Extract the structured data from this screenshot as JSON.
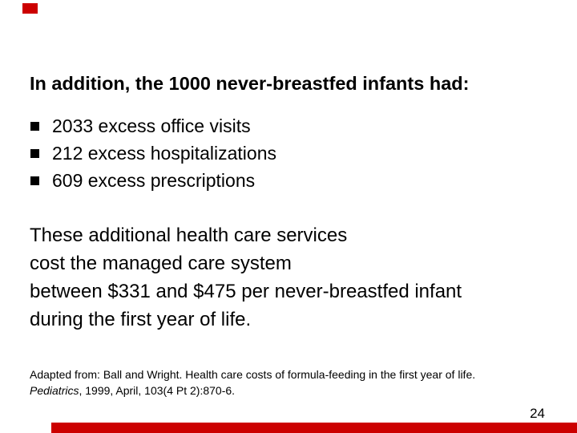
{
  "slide": {
    "accent_color": "#cc0000",
    "bullet_color": "#000000",
    "title": "In addition, the 1000 never-breastfed infants had:",
    "bullets": [
      "2033 excess office visits",
      "212 excess hospitalizations",
      "609 excess prescriptions"
    ],
    "statement_lines": [
      "These additional health care services",
      "cost the managed care system",
      "between $331 and $475 per never-breastfed infant",
      "during the first year of life."
    ],
    "citation": {
      "line1": "Adapted from: Ball and Wright. Health care costs of formula-feeding in the first year of life.",
      "journal": "Pediatrics",
      "line2_rest": ", 1999, April, 103(4 Pt 2):870-6."
    },
    "page_number": "24"
  }
}
